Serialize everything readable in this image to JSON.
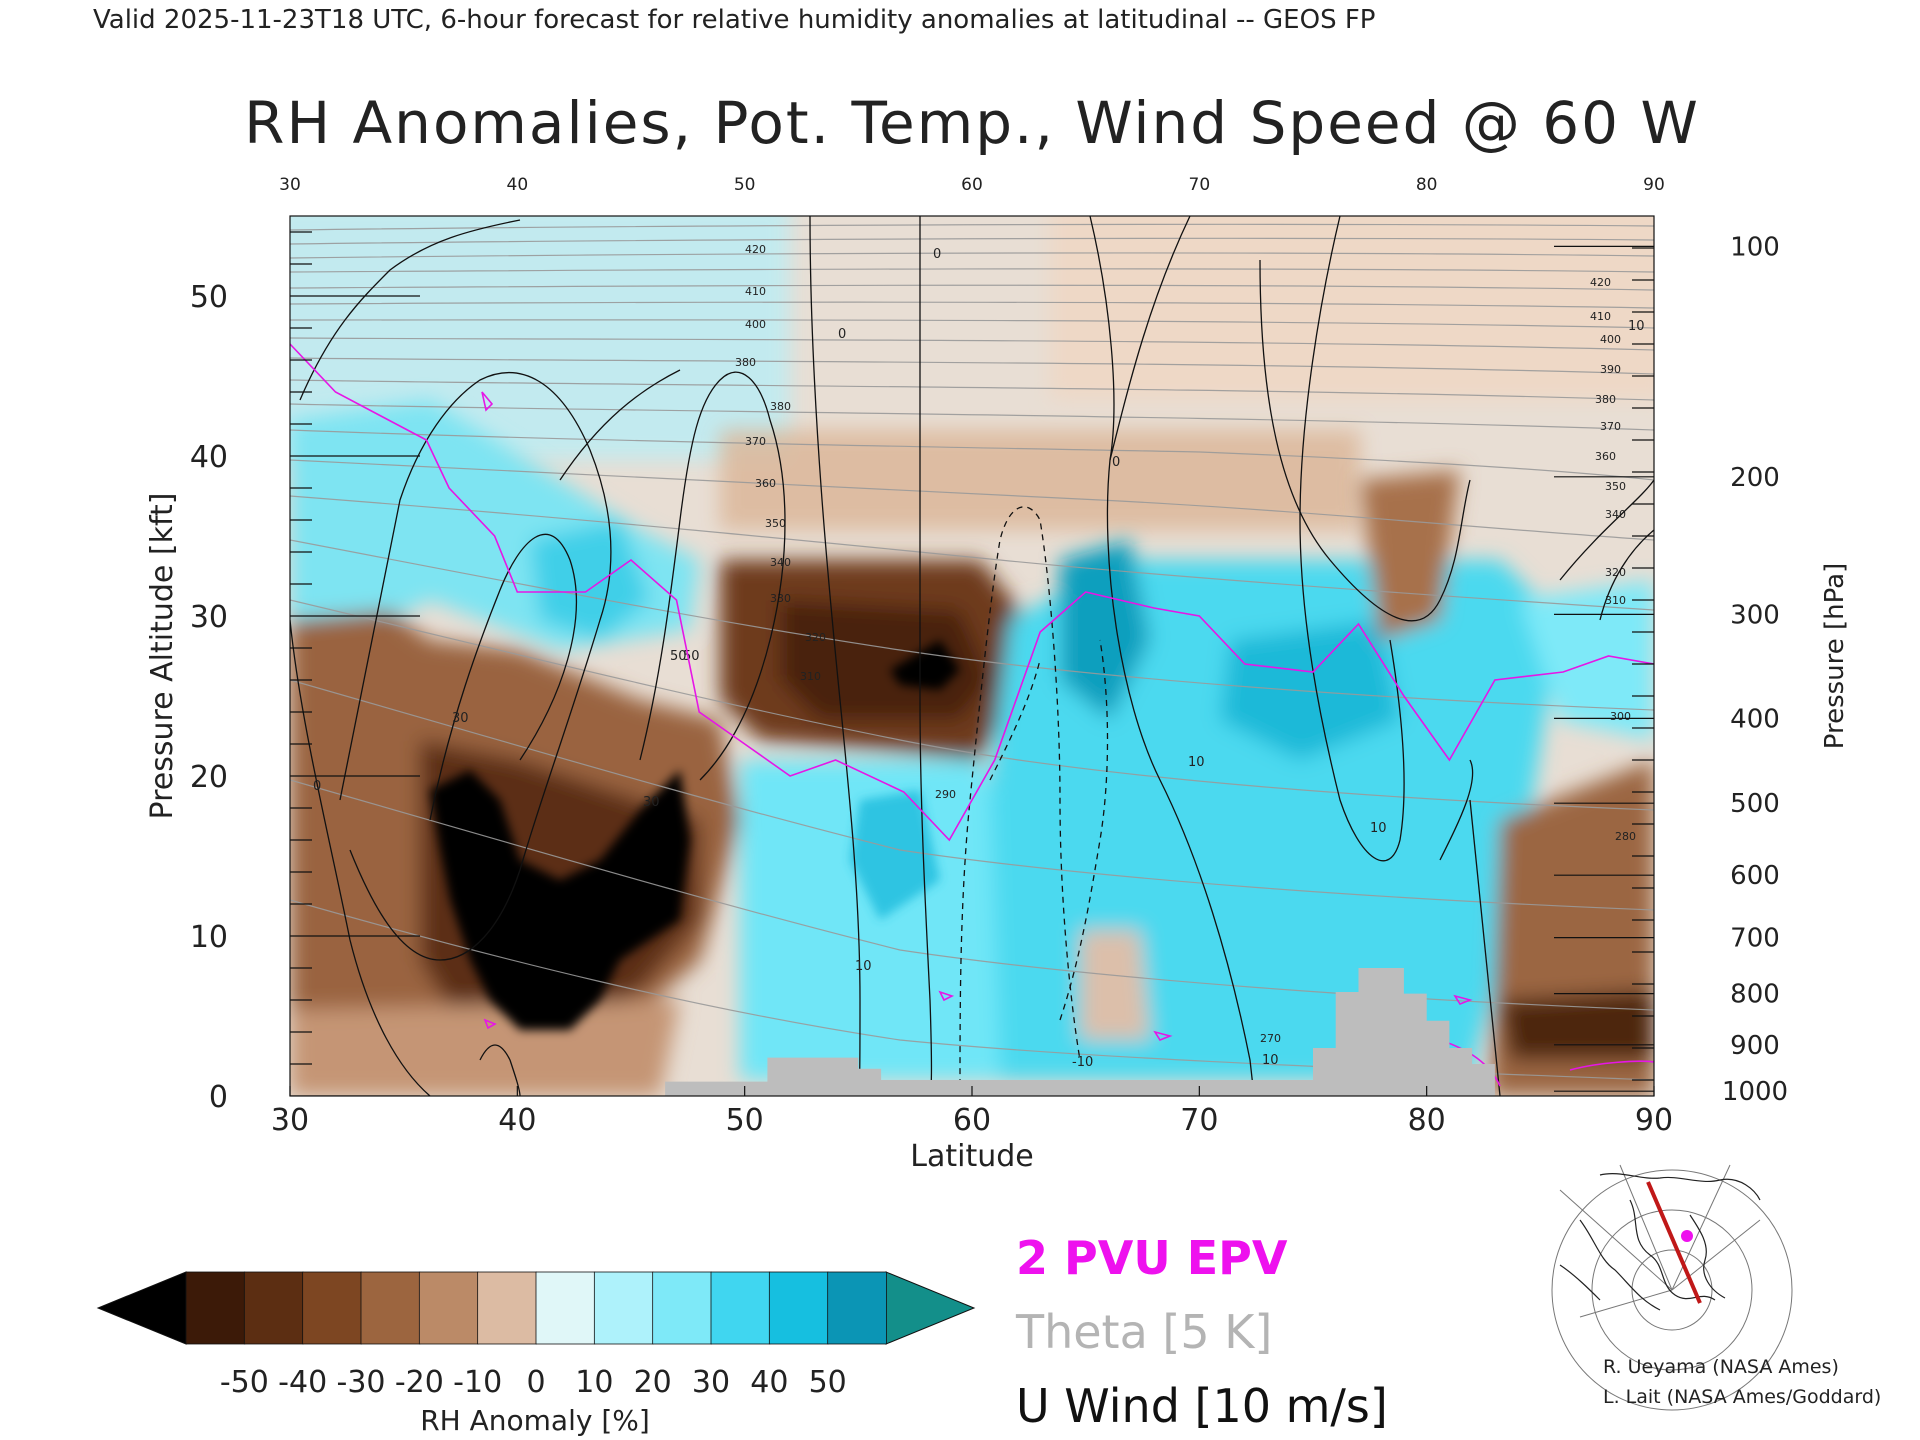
{
  "header": "Valid 2025-11-23T18 UTC, 6-hour forecast for relative humidity anomalies at latitudinal -- GEOS FP",
  "chart_data": {
    "type": "heatmap",
    "title": "RH Anomalies, Pot. Temp., Wind Speed @ 60 W",
    "xlabel": "Latitude",
    "ylabel": "Pressure Altitude [kft]",
    "y2label": "Pressure [hPa]",
    "xlim": [
      30,
      90
    ],
    "ylim": [
      0,
      55
    ],
    "xticks": [
      30,
      40,
      50,
      60,
      70,
      80,
      90
    ],
    "yticks": [
      0,
      10,
      20,
      30,
      40,
      50
    ],
    "pressure_ticks": [
      {
        "label": "100",
        "kft": 53.1
      },
      {
        "label": "200",
        "kft": 38.7
      },
      {
        "label": "300",
        "kft": 30.1
      },
      {
        "label": "400",
        "kft": 23.6
      },
      {
        "label": "500",
        "kft": 18.3
      },
      {
        "label": "600",
        "kft": 13.8
      },
      {
        "label": "700",
        "kft": 9.9
      },
      {
        "label": "800",
        "kft": 6.4
      },
      {
        "label": "900",
        "kft": 3.2
      },
      {
        "label": "1000",
        "kft": 0.3
      }
    ],
    "theta_levels": [
      270,
      280,
      290,
      300,
      310,
      320,
      330,
      340,
      350,
      360,
      370,
      380,
      390,
      400,
      410,
      420
    ],
    "tropopause_2pvu_kft": [
      {
        "lat": 30,
        "kft": 47
      },
      {
        "lat": 32,
        "kft": 44
      },
      {
        "lat": 34,
        "kft": 42.5
      },
      {
        "lat": 36,
        "kft": 41
      },
      {
        "lat": 37,
        "kft": 38
      },
      {
        "lat": 39,
        "kft": 35
      },
      {
        "lat": 40,
        "kft": 31.5
      },
      {
        "lat": 43,
        "kft": 31.5
      },
      {
        "lat": 45,
        "kft": 33.5
      },
      {
        "lat": 47,
        "kft": 31
      },
      {
        "lat": 48,
        "kft": 24
      },
      {
        "lat": 50,
        "kft": 22
      },
      {
        "lat": 52,
        "kft": 20
      },
      {
        "lat": 54,
        "kft": 21
      },
      {
        "lat": 57,
        "kft": 19
      },
      {
        "lat": 59,
        "kft": 16
      },
      {
        "lat": 61,
        "kft": 21
      },
      {
        "lat": 63,
        "kft": 29
      },
      {
        "lat": 65,
        "kft": 31.5
      },
      {
        "lat": 68,
        "kft": 30.5
      },
      {
        "lat": 70,
        "kft": 30
      },
      {
        "lat": 72,
        "kft": 27
      },
      {
        "lat": 75,
        "kft": 26.5
      },
      {
        "lat": 77,
        "kft": 29.5
      },
      {
        "lat": 79,
        "kft": 25
      },
      {
        "lat": 81,
        "kft": 21
      },
      {
        "lat": 83,
        "kft": 26
      },
      {
        "lat": 86,
        "kft": 26.5
      },
      {
        "lat": 88,
        "kft": 27.5
      },
      {
        "lat": 90,
        "kft": 27
      }
    ],
    "wind_contour_labels": [
      "30",
      "50",
      "0",
      "30",
      "50",
      "0",
      "10",
      "10",
      "-10",
      "10",
      "0",
      "10",
      "0",
      "10"
    ],
    "terrain_kft": [
      {
        "lat": 46.5,
        "kft": 0.9
      },
      {
        "lat": 51,
        "kft": 2.4
      },
      {
        "lat": 55,
        "kft": 1.7
      },
      {
        "lat": 56,
        "kft": 1.0
      },
      {
        "lat": 68,
        "kft": 1.0
      },
      {
        "lat": 75,
        "kft": 3.0
      },
      {
        "lat": 76,
        "kft": 6.5
      },
      {
        "lat": 77,
        "kft": 8.0
      },
      {
        "lat": 79,
        "kft": 6.4
      },
      {
        "lat": 80,
        "kft": 4.7
      },
      {
        "lat": 81,
        "kft": 3.0
      },
      {
        "lat": 82,
        "kft": 2.0
      },
      {
        "lat": 83,
        "kft": 0.8
      }
    ],
    "colorbar": {
      "label": "RH Anomaly [%]",
      "ticks": [
        "-50",
        "-40",
        "-30",
        "-20",
        "-10",
        "0",
        "10",
        "20",
        "30",
        "40",
        "50"
      ],
      "colors": [
        "#3c1a08",
        "#5c2e12",
        "#7d4622",
        "#9c653f",
        "#bb8a67",
        "#dcbba3",
        "#e0f7f8",
        "#aef2fb",
        "#7ee9f8",
        "#40d6f0",
        "#16bfe0",
        "#0b95b5"
      ],
      "under": "#000000",
      "over": "#138f8a"
    },
    "legend": [
      {
        "text": "2 PVU EPV",
        "color": "#ee11ee"
      },
      {
        "text": "Theta [5 K]",
        "color": "#b4b4b4"
      },
      {
        "text": "U Wind [10 m/s]",
        "color": "#111111"
      }
    ]
  },
  "credits": [
    "R. Ueyama (NASA Ames)",
    "L. Lait (NASA Ames/Goddard)"
  ]
}
